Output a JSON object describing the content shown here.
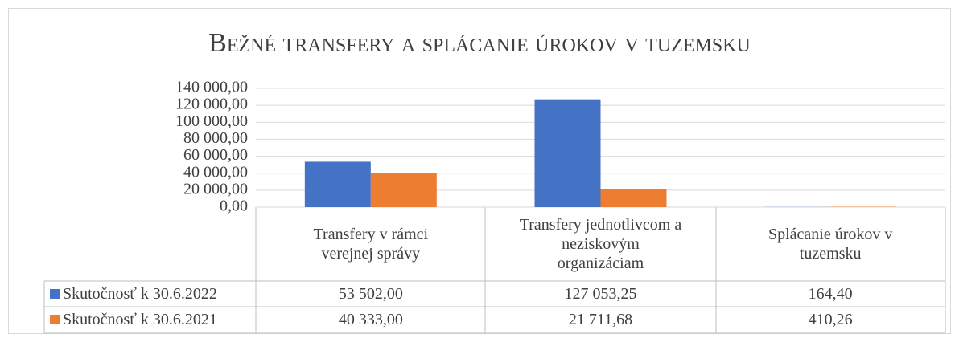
{
  "chart_data": {
    "type": "bar",
    "title": "Bežné transfery a splácanie úrokov v tuzemsku",
    "categories": [
      "Transfery v rámci verejnej správy",
      "Transfery jednotlivcom a neziskovým organizáciam",
      "Splácanie úrokov v tuzemsku"
    ],
    "series": [
      {
        "name": "Skutočnosť k 30.6.2022",
        "color": "#4472c4",
        "values": [
          53502,
          127053.25,
          164.4
        ],
        "value_labels": [
          "53 502,00",
          "127 053,25",
          "164,40"
        ]
      },
      {
        "name": "Skutočnosť k 30.6.2021",
        "color": "#ed7d31",
        "values": [
          40333,
          21711.68,
          410.26
        ],
        "value_labels": [
          "40 333,00",
          "21 711,68",
          "410,26"
        ]
      }
    ],
    "ylim": [
      0,
      140000
    ],
    "yticks": [
      {
        "value": 0,
        "label": "0,00"
      },
      {
        "value": 20000,
        "label": "20 000,00"
      },
      {
        "value": 40000,
        "label": "40 000,00"
      },
      {
        "value": 60000,
        "label": "60 000,00"
      },
      {
        "value": 80000,
        "label": "80 000,00"
      },
      {
        "value": 100000,
        "label": "100 000,00"
      },
      {
        "value": 120000,
        "label": "120 000,00"
      },
      {
        "value": 140000,
        "label": "140 000,00"
      }
    ],
    "grid": true
  }
}
